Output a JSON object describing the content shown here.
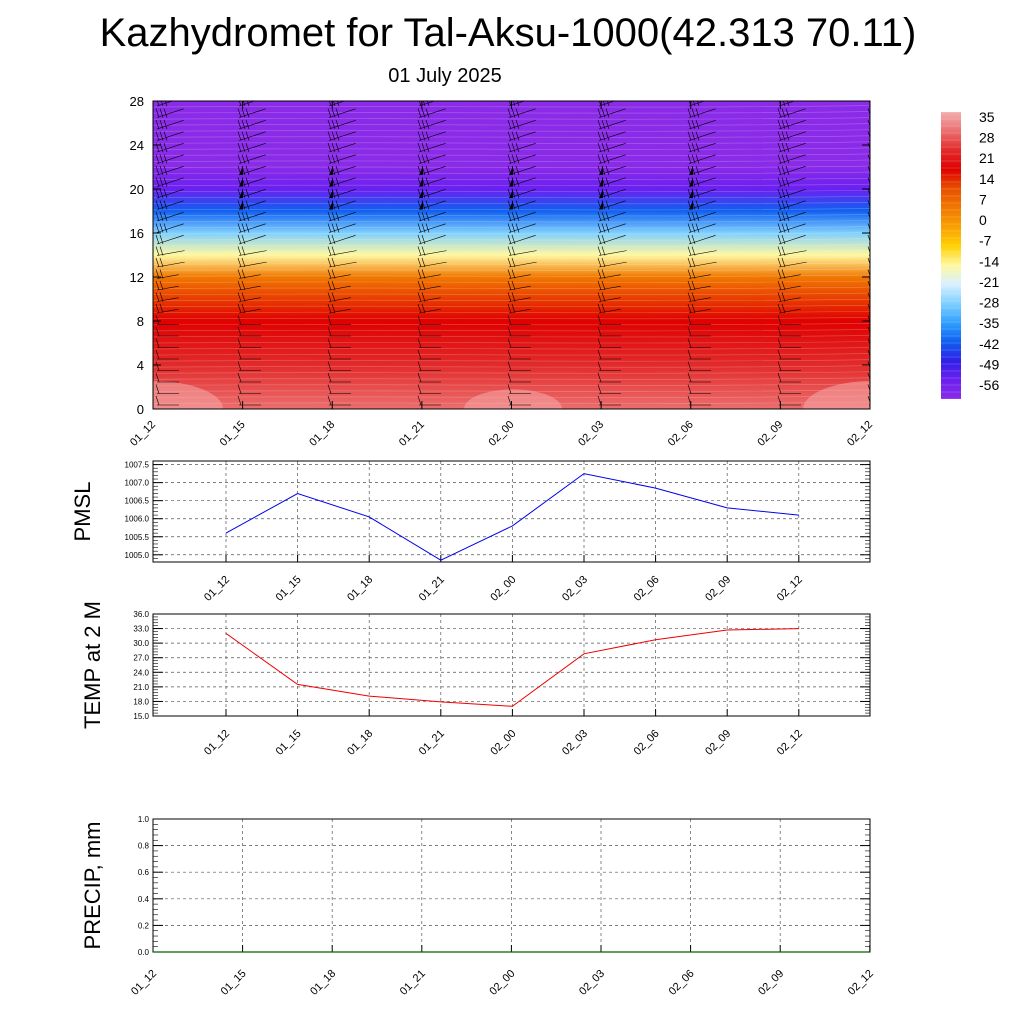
{
  "title": "Kazhydromet for Tal-Aksu-1000(42.313 70.11)",
  "subtitle": "01 July 2025",
  "colors": {
    "pmsl_line": "#0000ee",
    "temp_line": "#ee0000",
    "precip_line": "#006400",
    "grid": "#555555",
    "colorbar": [
      "#f2aeae",
      "#ec6e6e",
      "#e22a2a",
      "#e00000",
      "#e85000",
      "#f07800",
      "#f8a000",
      "#ffd000",
      "#fff8a0",
      "#d8f0ff",
      "#80d0ff",
      "#30a0ff",
      "#1060f0",
      "#3020e8",
      "#6a20f0",
      "#8a2be8"
    ]
  },
  "chart_data": [
    {
      "type": "heatmap",
      "name": "cross-section",
      "title": "",
      "xlabel": "",
      "ylabel": "",
      "x": [
        "01_12",
        "01_15",
        "01_18",
        "01_21",
        "02_00",
        "02_03",
        "02_06",
        "02_09",
        "02_12"
      ],
      "yticks": [
        0,
        4,
        8,
        12,
        16,
        20,
        24,
        28
      ],
      "ylim": [
        0,
        28
      ],
      "colorbar_labels": [
        "35",
        "28",
        "21",
        "14",
        "7",
        "0",
        "-7",
        "-14",
        "-21",
        "-28",
        "-35",
        "-42",
        "-49",
        "-56"
      ],
      "colorbar_range": [
        -60,
        38
      ],
      "levels": [
        0,
        4,
        8,
        12,
        14,
        16,
        18,
        20,
        22,
        24,
        28
      ],
      "temperature_profile": [
        34,
        24,
        18,
        6,
        -12,
        -28,
        -42,
        -52,
        -58,
        -60,
        -60
      ],
      "wind_barbs": true
    },
    {
      "type": "line",
      "name": "pmsl",
      "ylabel": "PMSL",
      "categories": [
        "01_12",
        "01_15",
        "01_18",
        "01_21",
        "02_00",
        "02_03",
        "02_06",
        "02_09",
        "02_12"
      ],
      "series": [
        {
          "values": [
            1005.6,
            1006.7,
            1006.05,
            1004.85,
            1005.8,
            1007.25,
            1006.85,
            1006.3,
            1006.1
          ]
        }
      ],
      "yticks": [
        "1005.0",
        "1005.5",
        "1006.0",
        "1006.5",
        "1007.0",
        "1007.5"
      ],
      "ylim": [
        1004.8,
        1007.6
      ]
    },
    {
      "type": "line",
      "name": "temp",
      "ylabel": "TEMP at 2 M",
      "categories": [
        "01_12",
        "01_15",
        "01_18",
        "01_21",
        "02_00",
        "02_03",
        "02_06",
        "02_09",
        "02_12"
      ],
      "series": [
        {
          "values": [
            32.0,
            21.5,
            19.1,
            17.9,
            17.0,
            27.8,
            30.7,
            32.7,
            33.0
          ]
        }
      ],
      "yticks": [
        "15.0",
        "18.0",
        "21.0",
        "24.0",
        "27.0",
        "30.0",
        "33.0",
        "36.0"
      ],
      "ylim": [
        15,
        36
      ]
    },
    {
      "type": "line",
      "name": "precip",
      "ylabel": "PRECIP, mm",
      "categories": [
        "01_12",
        "01_15",
        "01_18",
        "01_21",
        "02_00",
        "02_03",
        "02_06",
        "02_09",
        "02_12"
      ],
      "series": [
        {
          "values": [
            0,
            0,
            0,
            0,
            0,
            0,
            0,
            0,
            0
          ]
        }
      ],
      "yticks": [
        "0.0",
        "0.2",
        "0.4",
        "0.6",
        "0.8",
        "1.0"
      ],
      "ylim": [
        0,
        1
      ]
    }
  ]
}
